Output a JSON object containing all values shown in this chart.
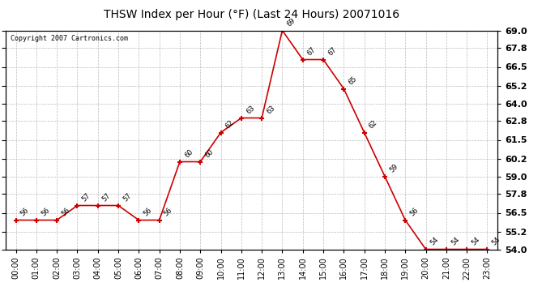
{
  "title": "THSW Index per Hour (°F) (Last 24 Hours) 20071016",
  "copyright": "Copyright 2007 Cartronics.com",
  "hours": [
    "00:00",
    "01:00",
    "02:00",
    "03:00",
    "04:00",
    "05:00",
    "06:00",
    "07:00",
    "08:00",
    "09:00",
    "10:00",
    "11:00",
    "12:00",
    "13:00",
    "14:00",
    "15:00",
    "16:00",
    "17:00",
    "18:00",
    "19:00",
    "20:00",
    "21:00",
    "22:00",
    "23:00"
  ],
  "values": [
    56,
    56,
    56,
    57,
    57,
    57,
    56,
    56,
    60,
    60,
    62,
    63,
    63,
    69,
    67,
    67,
    65,
    62,
    59,
    56,
    54,
    54,
    54,
    54
  ],
  "line_color": "#cc0000",
  "marker_color": "#cc0000",
  "bg_color": "#ffffff",
  "grid_color": "#bbbbbb",
  "ylim_min": 54.0,
  "ylim_max": 69.0,
  "yticks": [
    54.0,
    55.2,
    56.5,
    57.8,
    59.0,
    60.2,
    61.5,
    62.8,
    64.0,
    65.2,
    66.5,
    67.8,
    69.0
  ],
  "ytick_labels": [
    "54.0",
    "55.2",
    "56.5",
    "57.8",
    "59.0",
    "60.2",
    "61.5",
    "62.8",
    "64.0",
    "65.2",
    "66.5",
    "67.8",
    "69.0"
  ]
}
